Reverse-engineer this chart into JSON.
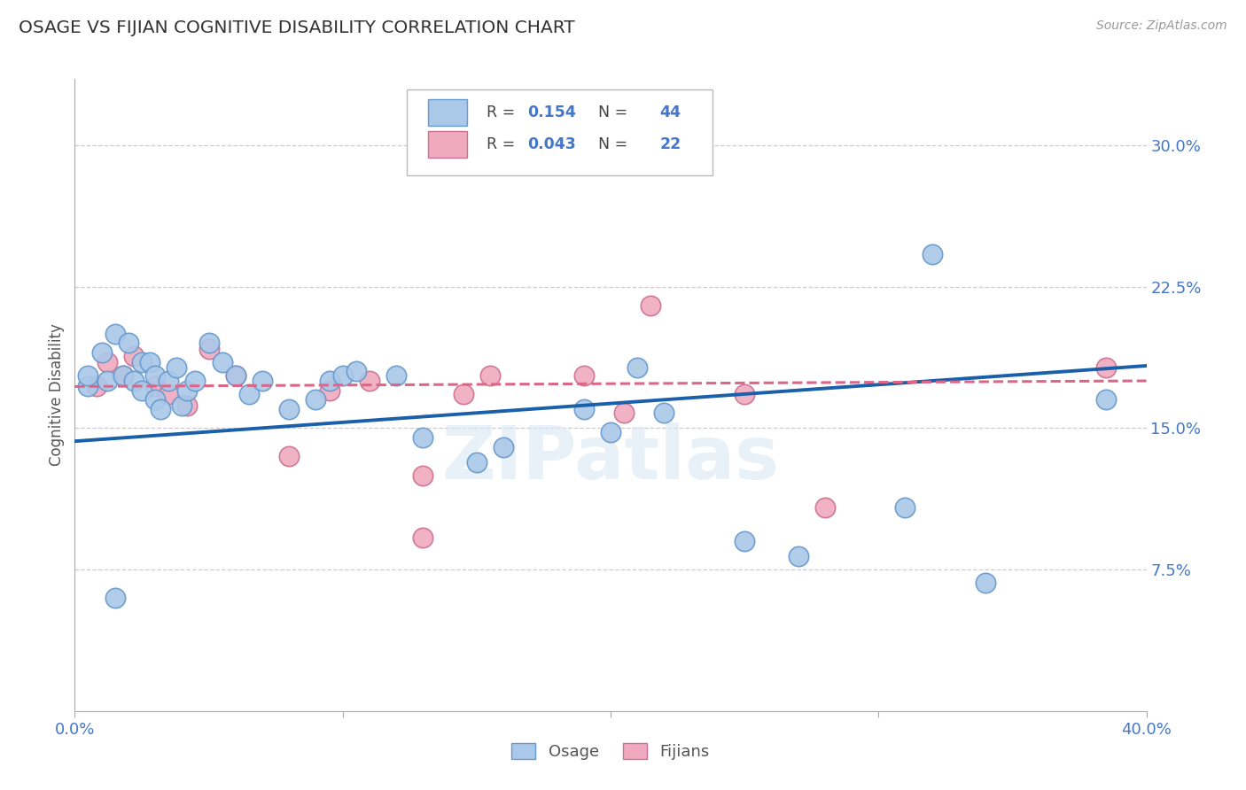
{
  "title": "OSAGE VS FIJIAN COGNITIVE DISABILITY CORRELATION CHART",
  "source": "Source: ZipAtlas.com",
  "ylabel": "Cognitive Disability",
  "x_min": 0.0,
  "x_max": 0.4,
  "y_min": 0.0,
  "y_max": 0.335,
  "ytick_vals": [
    0.075,
    0.15,
    0.225,
    0.3
  ],
  "xtick_vals": [
    0.0,
    0.1,
    0.2,
    0.3,
    0.4
  ],
  "osage_R": 0.154,
  "osage_N": 44,
  "fijian_R": 0.043,
  "fijian_N": 22,
  "osage_color": "#aac8e8",
  "osage_edge": "#6699cc",
  "fijian_color": "#f0aac0",
  "fijian_edge": "#cc7090",
  "trend_blue": "#1a5faa",
  "trend_pink": "#dd6688",
  "background": "#ffffff",
  "grid_color": "#cccccc",
  "title_color": "#333333",
  "label_color": "#4477cc",
  "watermark_color": "#dde8f5",
  "osage_x": [
    0.005,
    0.01,
    0.012,
    0.015,
    0.018,
    0.02,
    0.022,
    0.025,
    0.025,
    0.028,
    0.03,
    0.03,
    0.032,
    0.035,
    0.038,
    0.04,
    0.042,
    0.045,
    0.05,
    0.055,
    0.06,
    0.065,
    0.07,
    0.08,
    0.09,
    0.095,
    0.1,
    0.105,
    0.12,
    0.13,
    0.15,
    0.16,
    0.2,
    0.21,
    0.22,
    0.25,
    0.27,
    0.31,
    0.32,
    0.34,
    0.005,
    0.015,
    0.19,
    0.385
  ],
  "osage_y": [
    0.172,
    0.19,
    0.175,
    0.2,
    0.178,
    0.195,
    0.175,
    0.185,
    0.17,
    0.185,
    0.178,
    0.165,
    0.16,
    0.175,
    0.182,
    0.162,
    0.17,
    0.175,
    0.195,
    0.185,
    0.178,
    0.168,
    0.175,
    0.16,
    0.165,
    0.175,
    0.178,
    0.18,
    0.178,
    0.145,
    0.132,
    0.14,
    0.148,
    0.182,
    0.158,
    0.09,
    0.082,
    0.108,
    0.242,
    0.068,
    0.178,
    0.06,
    0.16,
    0.165
  ],
  "fijian_x": [
    0.008,
    0.012,
    0.018,
    0.022,
    0.03,
    0.035,
    0.042,
    0.05,
    0.06,
    0.08,
    0.095,
    0.11,
    0.13,
    0.145,
    0.155,
    0.19,
    0.205,
    0.215,
    0.25,
    0.28,
    0.13,
    0.385
  ],
  "fijian_y": [
    0.172,
    0.185,
    0.178,
    0.188,
    0.172,
    0.168,
    0.162,
    0.192,
    0.178,
    0.135,
    0.17,
    0.175,
    0.125,
    0.168,
    0.178,
    0.178,
    0.158,
    0.215,
    0.168,
    0.108,
    0.092,
    0.182
  ]
}
